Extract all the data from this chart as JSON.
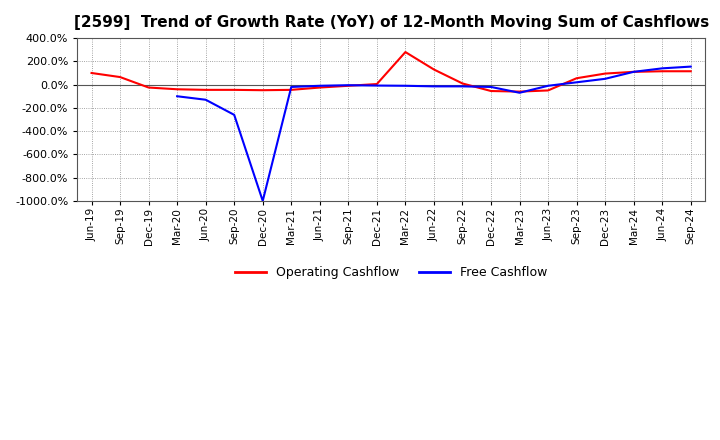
{
  "title": "[2599]  Trend of Growth Rate (YoY) of 12-Month Moving Sum of Cashflows",
  "xlabels": [
    "Jun-19",
    "Sep-19",
    "Dec-19",
    "Mar-20",
    "Jun-20",
    "Sep-20",
    "Dec-20",
    "Mar-21",
    "Jun-21",
    "Sep-21",
    "Dec-21",
    "Mar-22",
    "Jun-22",
    "Sep-22",
    "Dec-22",
    "Mar-23",
    "Jun-23",
    "Sep-23",
    "Dec-23",
    "Mar-24",
    "Jun-24",
    "Sep-24"
  ],
  "operating_cf": [
    100,
    65,
    -25,
    -40,
    -45,
    -45,
    -48,
    -45,
    -25,
    -10,
    5,
    280,
    130,
    10,
    -55,
    -60,
    -50,
    55,
    95,
    110,
    115,
    115
  ],
  "free_cf": [
    null,
    null,
    null,
    -100,
    -130,
    -260,
    -1000,
    -20,
    -10,
    -5,
    -8,
    -10,
    -15,
    -15,
    -20,
    -70,
    -10,
    20,
    50,
    110,
    140,
    155
  ],
  "ylim": [
    -1000,
    400
  ],
  "yticks": [
    -1000,
    -800,
    -600,
    -400,
    -200,
    0,
    200,
    400
  ],
  "operating_color": "#ff0000",
  "free_color": "#0000ff",
  "background_color": "#ffffff",
  "grid_color": "#888888",
  "title_fontsize": 11,
  "legend_labels": [
    "Operating Cashflow",
    "Free Cashflow"
  ]
}
